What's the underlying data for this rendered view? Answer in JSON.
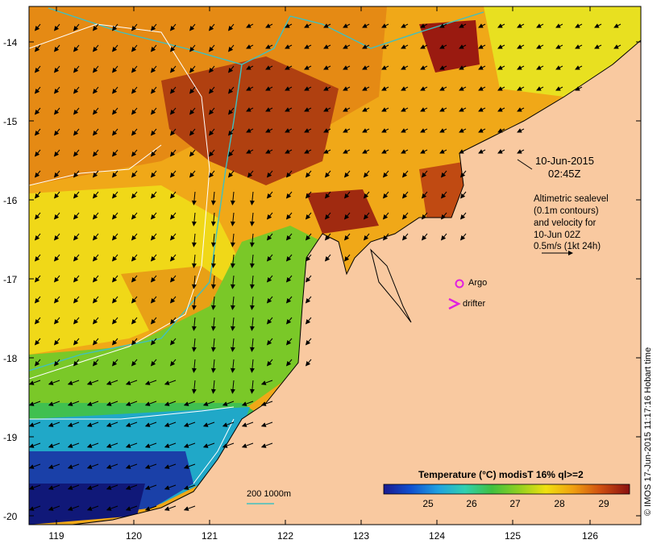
{
  "map": {
    "y_ticks": [
      "-14",
      "-15",
      "-16",
      "-17",
      "-18",
      "-19",
      "-20"
    ],
    "x_ticks": [
      "119",
      "120",
      "121",
      "122",
      "123",
      "124",
      "125",
      "126"
    ],
    "date": "10-Jun-2015",
    "time": "02:45Z",
    "altimetry_lines": [
      "Altimetric sealevel",
      "(0.1m contours)",
      "and velocity for",
      "10-Jun 02Z",
      "0.5m/s (1kt 24h)"
    ],
    "argo_label": "Argo",
    "drifter_label": "drifter",
    "isobath_label": "200  1000m",
    "colorbar_title": "Temperature (°C) modisT 16% ql>=2",
    "colorbar_ticks": [
      "25",
      "26",
      "27",
      "28",
      "29"
    ],
    "credit": "© IMOS 17-Jun-2015 11:17:16 Hobart time",
    "colors": {
      "land": "#f9c9a0",
      "argo": "#e020e0",
      "drifter": "#e020e0",
      "isobath": "#40c0c0",
      "contour": "#ffffff"
    },
    "colorbar_stops": [
      "#1a1a90",
      "#1050d0",
      "#20a0e0",
      "#30d0b0",
      "#40c040",
      "#90d020",
      "#f0e010",
      "#f0a010",
      "#d05010",
      "#8a1010"
    ]
  }
}
